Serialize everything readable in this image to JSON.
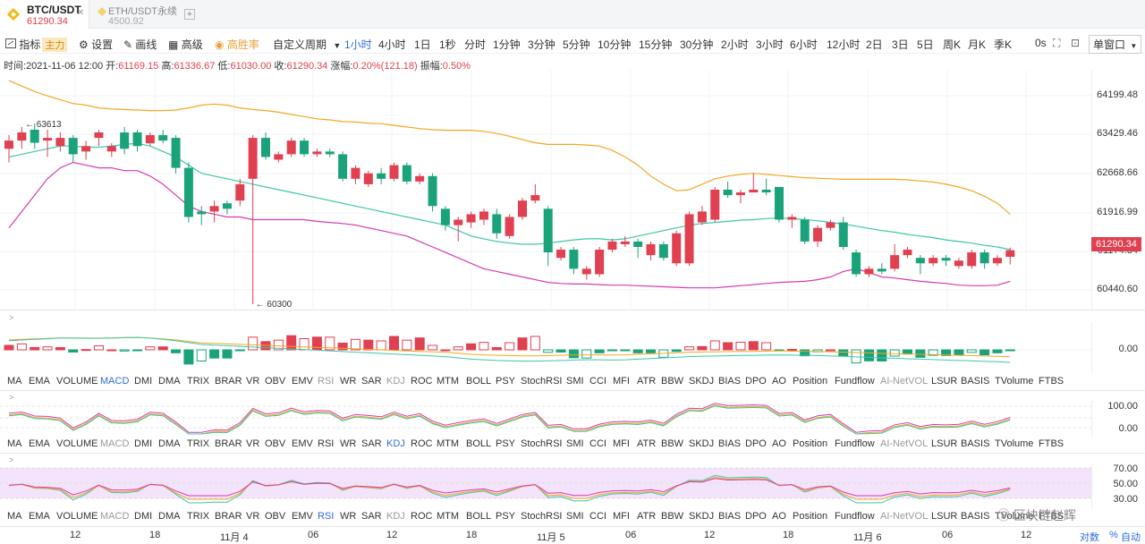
{
  "tabs": [
    {
      "symbol": "BTC/USDT",
      "price": "61290.34",
      "close": "✕"
    },
    {
      "symbol": "ETH/USDT永续",
      "price": "4500.92"
    }
  ],
  "tab_add": "+",
  "toolbar": {
    "indicator_label": "指标",
    "indicator_badge": "主力",
    "settings_label": "设置",
    "draw_label": "画线",
    "advanced_label": "高级",
    "winrate_label": "高胜率",
    "custom_period_label": "自定义周期",
    "periods": [
      "1小时",
      "4小时",
      "1日",
      "1秒",
      "分时",
      "1分钟",
      "3分钟",
      "5分钟",
      "10分钟",
      "15分钟",
      "30分钟",
      "2小时",
      "3小时",
      "6小时",
      "12小时",
      "2日",
      "3日",
      "5日",
      "周K",
      "月K",
      "季K"
    ],
    "active_period": "1小时",
    "zero_sec": "0s",
    "window_label": "单窗口"
  },
  "info": {
    "time_label": "时间:",
    "time": "2021-11-06 12:00",
    "open_label": "开:",
    "open": "61169.15",
    "high_label": "高:",
    "high": "61336.67",
    "low_label": "低:",
    "low": "61030.00",
    "close_label": "收:",
    "close": "61290.34",
    "change_label": "涨幅:",
    "change": "0.20%(121.18)",
    "amp_label": "振幅:",
    "amp": "0.50%"
  },
  "price_axis": [
    "64199.48",
    "63429.46",
    "62668.66",
    "61916.99",
    "61174.34",
    "60440.60"
  ],
  "current_price": "61290.34",
  "annotations": {
    "high": "63613",
    "low": "60300"
  },
  "macd_axis": [
    "0.00"
  ],
  "kdj_axis": [
    "100.00",
    "0.00"
  ],
  "rsi_axis": [
    "70.00",
    "50.00",
    "30.00"
  ],
  "indicators": [
    "MA",
    "EMA",
    "VOLUME",
    "MACD",
    "DMI",
    "DMA",
    "TRIX",
    "BRAR",
    "VR",
    "OBV",
    "EMV",
    "RSI",
    "WR",
    "SAR",
    "KDJ",
    "ROC",
    "MTM",
    "BOLL",
    "PSY",
    "StochRSI",
    "SMI",
    "CCI",
    "MFI",
    "ATR",
    "BBW",
    "SKDJ",
    "BIAS",
    "DPO",
    "AO",
    "Position",
    "Fundflow",
    "AI-NetVOL",
    "LSUR",
    "BASIS",
    "TVolume",
    "FTBS"
  ],
  "indicator_rows": [
    {
      "active": "MACD",
      "dim": [
        "RSI",
        "KDJ",
        "AI-NetVOL"
      ]
    },
    {
      "active": "KDJ",
      "dim": [
        "MACD",
        "AI-NetVOL"
      ]
    },
    {
      "active": "RSI",
      "dim": [
        "MACD",
        "KDJ",
        "AI-NetVOL"
      ]
    }
  ],
  "time_axis": [
    "12",
    "18",
    "11月 4",
    "06",
    "12",
    "18",
    "11月 5",
    "06",
    "12",
    "18",
    "11月 6",
    "06",
    "12"
  ],
  "bottom_right": {
    "log": "对数",
    "pct": "%",
    "auto": "自动"
  },
  "watermark": "区块链赵辉",
  "colors": {
    "up": "#1aa37a",
    "down": "#e04050",
    "accent": "#2f6bd8",
    "ma_upper": "#f5a623",
    "ma_mid": "#3cc7a8",
    "ma_lower": "#d63cae"
  },
  "chart_data": {
    "type": "candlestick",
    "title": "BTC/USDT",
    "ylim": [
      60300,
      64500
    ],
    "candles": [
      {
        "o": 63150,
        "c": 63300,
        "h": 63400,
        "l": 62900
      },
      {
        "o": 63300,
        "c": 63450,
        "h": 63550,
        "l": 63150
      },
      {
        "o": 63500,
        "c": 63260,
        "h": 63613,
        "l": 63150
      },
      {
        "o": 63300,
        "c": 63350,
        "h": 63500,
        "l": 63000
      },
      {
        "o": 63200,
        "c": 63350,
        "h": 63450,
        "l": 63100
      },
      {
        "o": 63350,
        "c": 63050,
        "h": 63400,
        "l": 62900
      },
      {
        "o": 63100,
        "c": 63200,
        "h": 63300,
        "l": 62950
      },
      {
        "o": 63350,
        "c": 63450,
        "h": 63500,
        "l": 63200
      },
      {
        "o": 63100,
        "c": 63200,
        "h": 63250,
        "l": 63000
      },
      {
        "o": 63450,
        "c": 63150,
        "h": 63550,
        "l": 63050
      },
      {
        "o": 63450,
        "c": 63200,
        "h": 63500,
        "l": 63100
      },
      {
        "o": 63250,
        "c": 63400,
        "h": 63450,
        "l": 63200
      },
      {
        "o": 63400,
        "c": 63300,
        "h": 63500,
        "l": 63250
      },
      {
        "o": 63350,
        "c": 62800,
        "h": 63400,
        "l": 62700
      },
      {
        "o": 62800,
        "c": 61900,
        "h": 62900,
        "l": 61800
      },
      {
        "o": 62000,
        "c": 61950,
        "h": 62100,
        "l": 61750
      },
      {
        "o": 62000,
        "c": 62100,
        "h": 62200,
        "l": 61800
      },
      {
        "o": 62150,
        "c": 62050,
        "h": 62200,
        "l": 61950
      },
      {
        "o": 62200,
        "c": 62500,
        "h": 62600,
        "l": 62100
      },
      {
        "o": 62600,
        "c": 63350,
        "h": 63400,
        "l": 60300
      },
      {
        "o": 63350,
        "c": 63000,
        "h": 63450,
        "l": 62950
      },
      {
        "o": 62950,
        "c": 63050,
        "h": 63100,
        "l": 62900
      },
      {
        "o": 63050,
        "c": 63300,
        "h": 63350,
        "l": 63000
      },
      {
        "o": 63300,
        "c": 63050,
        "h": 63350,
        "l": 63000
      },
      {
        "o": 63050,
        "c": 63100,
        "h": 63150,
        "l": 63000
      },
      {
        "o": 63100,
        "c": 63050,
        "h": 63150,
        "l": 63000
      },
      {
        "o": 63050,
        "c": 62600,
        "h": 63100,
        "l": 62550
      },
      {
        "o": 62600,
        "c": 62800,
        "h": 62850,
        "l": 62500
      },
      {
        "o": 62500,
        "c": 62700,
        "h": 62750,
        "l": 62450
      },
      {
        "o": 62700,
        "c": 62600,
        "h": 62800,
        "l": 62500
      },
      {
        "o": 62600,
        "c": 62850,
        "h": 62900,
        "l": 62550
      },
      {
        "o": 62850,
        "c": 62550,
        "h": 62900,
        "l": 62500
      },
      {
        "o": 62550,
        "c": 62650,
        "h": 62700,
        "l": 62500
      },
      {
        "o": 62650,
        "c": 62100,
        "h": 62700,
        "l": 62000
      },
      {
        "o": 62050,
        "c": 61750,
        "h": 62100,
        "l": 61650
      },
      {
        "o": 61750,
        "c": 61850,
        "h": 61900,
        "l": 61450
      },
      {
        "o": 61800,
        "c": 61950,
        "h": 62000,
        "l": 61700
      },
      {
        "o": 61850,
        "c": 62000,
        "h": 62050,
        "l": 61750
      },
      {
        "o": 61950,
        "c": 61600,
        "h": 62050,
        "l": 61500
      },
      {
        "o": 61550,
        "c": 61900,
        "h": 61950,
        "l": 61500
      },
      {
        "o": 61900,
        "c": 62200,
        "h": 62250,
        "l": 61850
      },
      {
        "o": 62200,
        "c": 62300,
        "h": 62500,
        "l": 62150
      },
      {
        "o": 62050,
        "c": 61250,
        "h": 62100,
        "l": 61000
      },
      {
        "o": 61150,
        "c": 61300,
        "h": 61350,
        "l": 61100
      },
      {
        "o": 61300,
        "c": 60950,
        "h": 61350,
        "l": 60850
      },
      {
        "o": 60850,
        "c": 60950,
        "h": 61000,
        "l": 60750
      },
      {
        "o": 60850,
        "c": 61300,
        "h": 61350,
        "l": 60800
      },
      {
        "o": 61300,
        "c": 61450,
        "h": 61500,
        "l": 61250
      },
      {
        "o": 61400,
        "c": 61450,
        "h": 61550,
        "l": 61350
      },
      {
        "o": 61450,
        "c": 61350,
        "h": 61500,
        "l": 61150
      },
      {
        "o": 61200,
        "c": 61400,
        "h": 61450,
        "l": 61100
      },
      {
        "o": 61400,
        "c": 61150,
        "h": 61450,
        "l": 61100
      },
      {
        "o": 61050,
        "c": 61600,
        "h": 61650,
        "l": 61000
      },
      {
        "o": 61050,
        "c": 61950,
        "h": 62000,
        "l": 61000
      },
      {
        "o": 61800,
        "c": 62000,
        "h": 62100,
        "l": 61750
      },
      {
        "o": 61850,
        "c": 62400,
        "h": 62450,
        "l": 61800
      },
      {
        "o": 62400,
        "c": 62300,
        "h": 62550,
        "l": 62250
      },
      {
        "o": 62300,
        "c": 62350,
        "h": 62400,
        "l": 62150
      },
      {
        "o": 62350,
        "c": 62400,
        "h": 62700,
        "l": 62350
      },
      {
        "o": 62400,
        "c": 62350,
        "h": 62600,
        "l": 62300
      },
      {
        "o": 62450,
        "c": 61850,
        "h": 62450,
        "l": 61800
      },
      {
        "o": 61850,
        "c": 61900,
        "h": 61950,
        "l": 61700
      },
      {
        "o": 61850,
        "c": 61450,
        "h": 61900,
        "l": 61400
      },
      {
        "o": 61450,
        "c": 61700,
        "h": 61750,
        "l": 61350
      },
      {
        "o": 61700,
        "c": 61800,
        "h": 61850,
        "l": 61650
      },
      {
        "o": 61800,
        "c": 61350,
        "h": 61900,
        "l": 61300
      },
      {
        "o": 61250,
        "c": 60850,
        "h": 61300,
        "l": 60800
      },
      {
        "o": 60850,
        "c": 60950,
        "h": 61000,
        "l": 60800
      },
      {
        "o": 60950,
        "c": 60900,
        "h": 61050,
        "l": 60850
      },
      {
        "o": 60950,
        "c": 61200,
        "h": 61400,
        "l": 60900
      },
      {
        "o": 61200,
        "c": 61300,
        "h": 61350,
        "l": 61150
      },
      {
        "o": 61150,
        "c": 61050,
        "h": 61200,
        "l": 60850
      },
      {
        "o": 61050,
        "c": 61150,
        "h": 61200,
        "l": 61000
      },
      {
        "o": 61150,
        "c": 61100,
        "h": 61200,
        "l": 61000
      },
      {
        "o": 61000,
        "c": 61100,
        "h": 61150,
        "l": 60950
      },
      {
        "o": 61000,
        "c": 61250,
        "h": 61300,
        "l": 60950
      },
      {
        "o": 61250,
        "c": 61050,
        "h": 61300,
        "l": 60950
      },
      {
        "o": 61050,
        "c": 61150,
        "h": 61200,
        "l": 61000
      },
      {
        "o": 61169,
        "c": 61290,
        "h": 61337,
        "l": 61030
      }
    ],
    "upper_band": [
      64400,
      64300,
      64200,
      64120,
      64050,
      63980,
      63950,
      63900,
      63880,
      63870,
      63860,
      63850,
      63850,
      63860,
      63900,
      63950,
      63970,
      63950,
      63900,
      63870,
      63850,
      63820,
      63780,
      63740,
      63700,
      63680,
      63650,
      63640,
      63620,
      63610,
      63580,
      63550,
      63520,
      63500,
      63490,
      63490,
      63490,
      63470,
      63430,
      63380,
      63320,
      63260,
      63230,
      63230,
      63230,
      63220,
      63200,
      63120,
      63000,
      62850,
      62650,
      62500,
      62380,
      62400,
      62500,
      62600,
      62650,
      62680,
      62700,
      62680,
      62660,
      62640,
      62620,
      62610,
      62600,
      62590,
      62590,
      62590,
      62590,
      62590,
      62580,
      62560,
      62540,
      62500,
      62450,
      62380,
      62280,
      62150,
      61950
    ],
    "mid_band": [
      63000,
      63050,
      63100,
      63150,
      63200,
      63200,
      63180,
      63180,
      63200,
      63230,
      63250,
      63200,
      63100,
      63000,
      62850,
      62700,
      62650,
      62600,
      62550,
      62500,
      62450,
      62400,
      62350,
      62300,
      62250,
      62200,
      62150,
      62100,
      62050,
      62000,
      61950,
      61900,
      61850,
      61800,
      61750,
      61650,
      61550,
      61500,
      61450,
      61420,
      61400,
      61400,
      61420,
      61450,
      61480,
      61500,
      61500,
      61480,
      61500,
      61550,
      61600,
      61650,
      61700,
      61750,
      61780,
      61800,
      61820,
      61840,
      61850,
      61870,
      61880,
      61870,
      61850,
      61830,
      61800,
      61770,
      61730,
      61690,
      61650,
      61620,
      61580,
      61550,
      61520,
      61480,
      61450,
      61420,
      61380,
      61350,
      61300
    ],
    "lower_band": [
      61700,
      62000,
      62300,
      62600,
      62800,
      62900,
      62850,
      62800,
      62800,
      62750,
      62750,
      62650,
      62500,
      62300,
      62100,
      62000,
      61950,
      61900,
      61900,
      61850,
      61850,
      61850,
      61850,
      61850,
      61820,
      61800,
      61780,
      61750,
      61700,
      61650,
      61600,
      61550,
      61450,
      61350,
      61250,
      61150,
      61050,
      60950,
      60900,
      60850,
      60800,
      60750,
      60700,
      60680,
      60670,
      60670,
      60660,
      60650,
      60650,
      60640,
      60630,
      60620,
      60610,
      60600,
      60600,
      60600,
      60620,
      60640,
      60660,
      60680,
      60700,
      60710,
      60720,
      60750,
      60800,
      60900,
      60950,
      60880,
      60800,
      60780,
      60750,
      60720,
      60700,
      60680,
      60650,
      60640,
      60640,
      60650,
      60720
    ]
  }
}
